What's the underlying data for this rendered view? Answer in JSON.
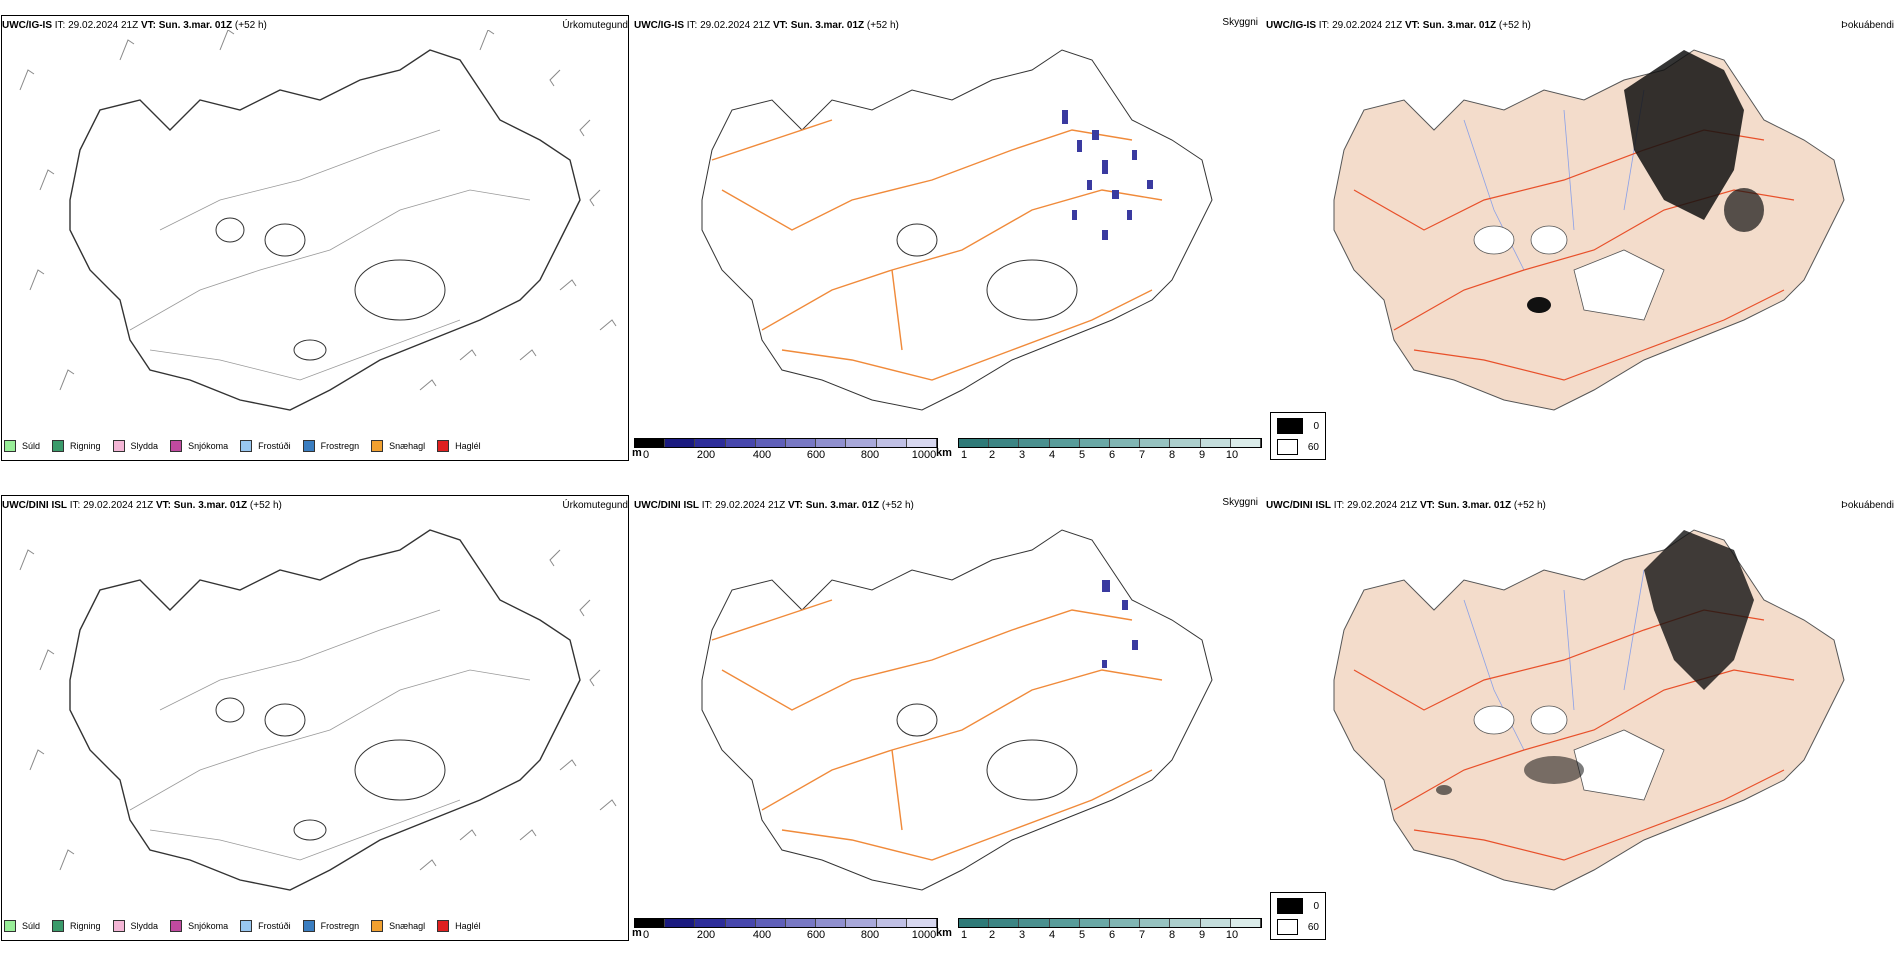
{
  "rows": [
    {
      "model": "UWC/IG-IS",
      "it_label": "IT:",
      "it_value": "29.02.2024 21Z",
      "vt_label": "VT:",
      "vt_value": "Sun. 3.mar. 01Z",
      "lead": "(+52 h)"
    },
    {
      "model": "UWC/DINI ISL",
      "it_label": "IT:",
      "it_value": "29.02.2024 21Z",
      "vt_label": "VT:",
      "vt_value": "Sun. 3.mar. 01Z",
      "lead": "(+52 h)"
    }
  ],
  "panel_titles": {
    "left": "Úrkomutegund",
    "mid": "Skyggni",
    "right": "Þokuábendi"
  },
  "ptype_legend": [
    {
      "label": "Súld",
      "color": "#99ee99"
    },
    {
      "label": "Rigning",
      "color": "#3a9a6a"
    },
    {
      "label": "Slydda",
      "color": "#f4b6d6"
    },
    {
      "label": "Snjókoma",
      "color": "#c04aa0"
    },
    {
      "label": "Frostúði",
      "color": "#99c7f0"
    },
    {
      "label": "Frostregn",
      "color": "#3a7dc0"
    },
    {
      "label": "Snæhagl",
      "color": "#f0a030"
    },
    {
      "label": "Haglél",
      "color": "#e02020"
    }
  ],
  "visibility_m": {
    "unit": "m",
    "ticks": [
      "0",
      "200",
      "400",
      "600",
      "800",
      "1000"
    ],
    "colors": [
      "#000000",
      "#1a1a80",
      "#2d2d9a",
      "#4747ad",
      "#5f5fb9",
      "#7878c4",
      "#9090cf",
      "#a8a8da",
      "#c0c0e5",
      "#d8d8f0"
    ]
  },
  "visibility_km": {
    "unit": "km",
    "ticks": [
      "1",
      "2",
      "3",
      "4",
      "5",
      "6",
      "7",
      "8",
      "9",
      "10"
    ],
    "colors": [
      "#2f7a78",
      "#3c8584",
      "#4a908f",
      "#589c9a",
      "#6aa8a6",
      "#80b5b3",
      "#96c2c0",
      "#accfcd",
      "#c4dddc",
      "#dbecea"
    ]
  },
  "fog_legend": [
    {
      "label": "0",
      "color": "#000000"
    },
    {
      "label": "60",
      "color": "#ffffff"
    }
  ],
  "colors": {
    "coast": "#333333",
    "roads": "#f08a3a",
    "roads_fog": "#e8502a",
    "land_fog": "#f3dccb",
    "rivers": "#8aa0e8"
  }
}
